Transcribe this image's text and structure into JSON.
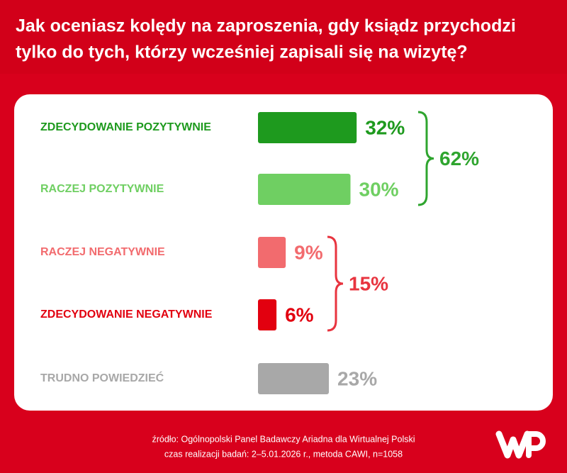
{
  "chart_data": {
    "type": "bar",
    "title": [
      "Jak oceniasz kolędy na zaproszenia, gdy ksiądz przychodzi",
      "tylko do tych, którzy wcześniej zapisali się na wizytę?"
    ],
    "categories": [
      "ZDECYDOWANIE POZYTYWNIE",
      "RACZEJ POZYTYWNIE",
      "RACZEJ NEGATYWNIE",
      "ZDECYDOWANIE NEGATYWNIE",
      "TRUDNO POWIEDZIEĆ"
    ],
    "values": [
      32,
      30,
      9,
      6,
      23
    ],
    "value_labels": [
      "32%",
      "30%",
      "9%",
      "6%",
      "23%"
    ],
    "colors": [
      "#1e9a1e",
      "#6fcf62",
      "#f26b6e",
      "#e2000f",
      "#a8a8a8"
    ],
    "group_totals": [
      {
        "value": 62,
        "label": "62%",
        "color": "#2fa52f"
      },
      {
        "value": 15,
        "label": "15%",
        "color": "#e8343f"
      }
    ],
    "footer": [
      "źródło: Ogólnopolski Panel Badawczy Ariadna dla Wirtualnej Polski",
      "czas realizacji badań: 2–5.01.2026 r., metoda CAWI, n=1058"
    ]
  }
}
